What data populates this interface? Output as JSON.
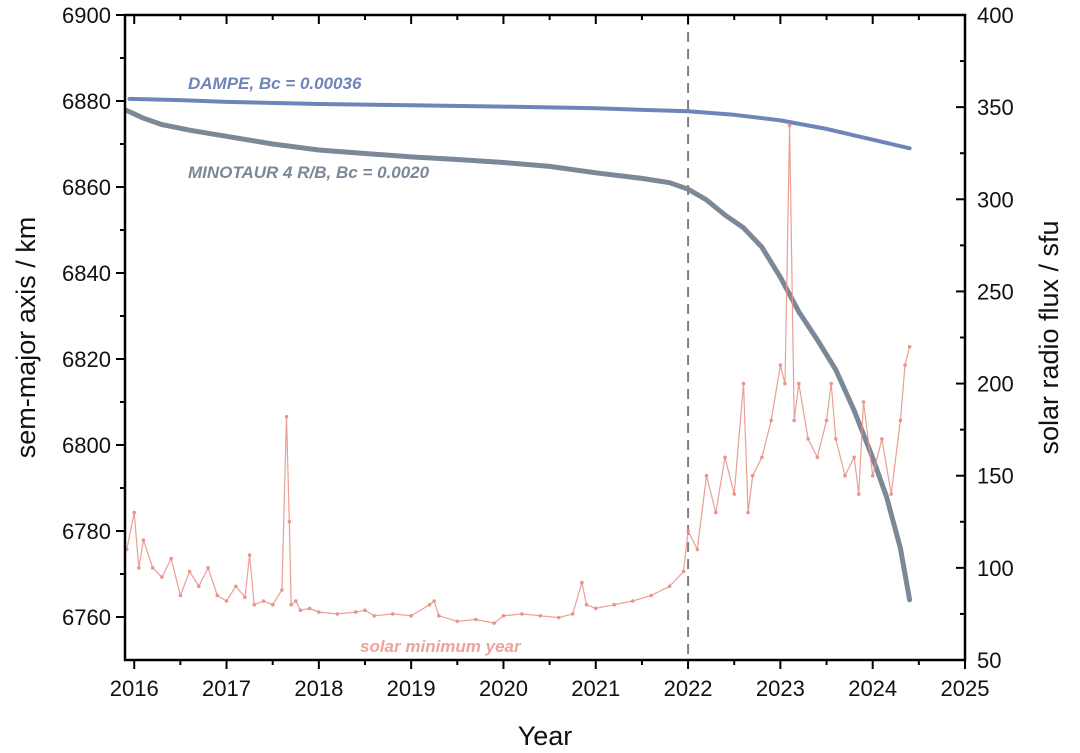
{
  "chart_data": {
    "type": "line",
    "xlabel": "Year",
    "ylabel_left": "sem-major axis / km",
    "ylabel_right": "solar radio flux / sfu",
    "xlim": [
      2015.9,
      2025
    ],
    "ylim_left": [
      6750,
      6900
    ],
    "ylim_right": [
      50,
      400
    ],
    "x_ticks": [
      "2016",
      "2017",
      "2018",
      "2019",
      "2020",
      "2021",
      "2022",
      "2023",
      "2024",
      "2025"
    ],
    "x_tick_values": [
      2016,
      2017,
      2018,
      2019,
      2020,
      2021,
      2022,
      2023,
      2024,
      2025
    ],
    "y_left_ticks": [
      "6760",
      "6780",
      "6800",
      "6820",
      "6840",
      "6860",
      "6880",
      "6900"
    ],
    "y_left_tick_values": [
      6760,
      6780,
      6800,
      6820,
      6840,
      6860,
      6880,
      6900
    ],
    "y_right_ticks": [
      "50",
      "100",
      "150",
      "200",
      "250",
      "300",
      "350",
      "400"
    ],
    "y_right_tick_values": [
      50,
      100,
      150,
      200,
      250,
      300,
      350,
      400
    ],
    "grid": false,
    "vline": {
      "x": 2022,
      "style": "dashed",
      "color": "#808080"
    },
    "annotations": {
      "dampe": "DAMPE, Bc = 0.00036",
      "minotaur": "MINOTAUR 4 R/B, Bc = 0.0020",
      "solar": "solar minimum year"
    },
    "series": [
      {
        "name": "DAMPE, Bc = 0.00036",
        "axis": "left",
        "color": "#6f84b8",
        "x": [
          2015.95,
          2016.5,
          2017,
          2018,
          2019,
          2020,
          2021,
          2022,
          2022.5,
          2023,
          2023.5,
          2024,
          2024.4
        ],
        "y": [
          6880.5,
          6880.2,
          6879.8,
          6879.3,
          6879.0,
          6878.7,
          6878.3,
          6877.6,
          6876.8,
          6875.5,
          6873.5,
          6871.0,
          6869.0
        ]
      },
      {
        "name": "MINOTAUR 4 R/B, Bc = 0.0020",
        "axis": "left",
        "color": "#7b8898",
        "x": [
          2015.92,
          2016.1,
          2016.3,
          2016.6,
          2017,
          2017.5,
          2018,
          2018.5,
          2019,
          2019.5,
          2020,
          2020.5,
          2021,
          2021.5,
          2021.8,
          2022,
          2022.2,
          2022.4,
          2022.6,
          2022.8,
          2023,
          2023.2,
          2023.4,
          2023.6,
          2023.8,
          2024,
          2024.15,
          2024.3,
          2024.4
        ],
        "y": [
          6877.8,
          6876.0,
          6874.5,
          6873.2,
          6871.8,
          6870.0,
          6868.6,
          6867.8,
          6867.0,
          6866.4,
          6865.7,
          6864.8,
          6863.3,
          6862.0,
          6861.0,
          6859.5,
          6857.0,
          6853.5,
          6850.5,
          6846.0,
          6839.0,
          6831.0,
          6824.5,
          6817.5,
          6808.0,
          6797.0,
          6788.0,
          6776.0,
          6764.0
        ]
      },
      {
        "name": "solar radio flux",
        "axis": "right",
        "color": "#e8958a",
        "x": [
          2015.92,
          2016.0,
          2016.05,
          2016.1,
          2016.2,
          2016.3,
          2016.4,
          2016.5,
          2016.6,
          2016.7,
          2016.8,
          2016.9,
          2017.0,
          2017.1,
          2017.2,
          2017.25,
          2017.3,
          2017.4,
          2017.5,
          2017.6,
          2017.65,
          2017.68,
          2017.7,
          2017.75,
          2017.8,
          2017.9,
          2018.0,
          2018.2,
          2018.4,
          2018.5,
          2018.6,
          2018.8,
          2019.0,
          2019.2,
          2019.25,
          2019.3,
          2019.5,
          2019.7,
          2019.9,
          2020.0,
          2020.2,
          2020.4,
          2020.6,
          2020.75,
          2020.85,
          2020.9,
          2021.0,
          2021.2,
          2021.4,
          2021.6,
          2021.8,
          2021.95,
          2022.0,
          2022.1,
          2022.2,
          2022.3,
          2022.4,
          2022.5,
          2022.6,
          2022.65,
          2022.7,
          2022.8,
          2022.9,
          2023.0,
          2023.05,
          2023.1,
          2023.15,
          2023.2,
          2023.3,
          2023.4,
          2023.5,
          2023.55,
          2023.6,
          2023.7,
          2023.8,
          2023.85,
          2023.9,
          2024.0,
          2024.1,
          2024.2,
          2024.3,
          2024.35,
          2024.4
        ],
        "y": [
          110,
          130,
          100,
          115,
          100,
          95,
          105,
          85,
          98,
          90,
          100,
          85,
          82,
          90,
          84,
          107,
          80,
          82,
          80,
          88,
          182,
          125,
          80,
          82,
          77,
          78,
          76,
          75,
          76,
          77,
          74,
          75,
          74,
          80,
          82,
          74,
          71,
          72,
          70,
          74,
          75,
          74,
          73,
          75,
          92,
          80,
          78,
          80,
          82,
          85,
          90,
          98,
          120,
          110,
          150,
          130,
          160,
          140,
          200,
          130,
          150,
          160,
          180,
          210,
          200,
          340,
          180,
          200,
          170,
          160,
          180,
          200,
          170,
          150,
          160,
          140,
          190,
          150,
          170,
          140,
          180,
          210,
          220
        ]
      }
    ]
  }
}
